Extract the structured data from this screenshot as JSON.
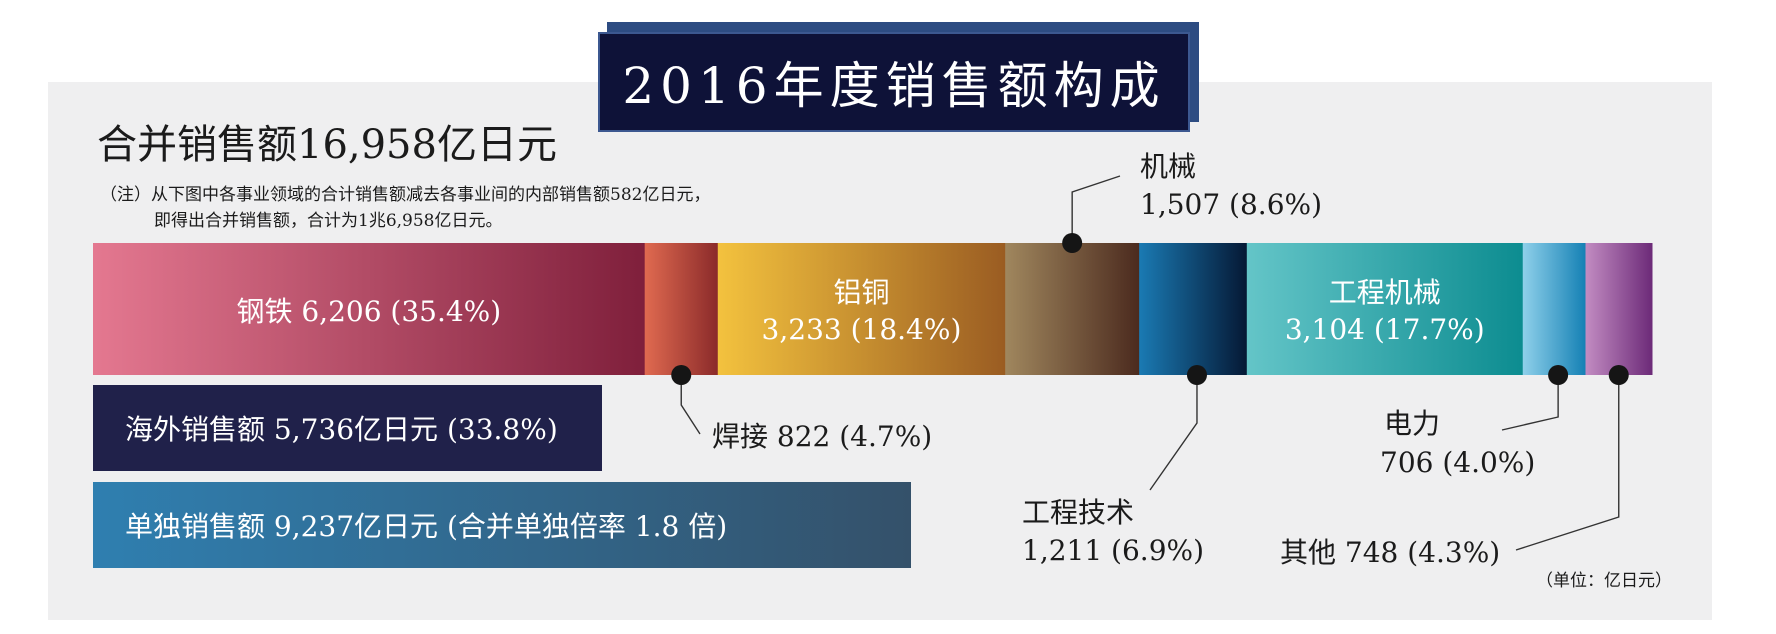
{
  "header": {
    "title": "2016年度销售额构成",
    "total": "合并销售额16,958亿日元",
    "note_line1": "（注）从下图中各事业领域的合计销售额减去各事业间的内部销售额582亿日元，",
    "note_line2": "即得出合并销售额，合计为1兆6,958亿日元。",
    "unit": "（单位：亿日元）"
  },
  "boxes": {
    "overseas": "海外销售额 5,736亿日元 (33.8%)",
    "standalone": "单独销售额 9,237亿日元 (合并单独倍率 1.8 倍)"
  },
  "chart_data": {
    "type": "bar",
    "orientation": "stacked-horizontal",
    "categories": [
      "钢铁",
      "焊接",
      "铝铜",
      "机械",
      "工程技术",
      "工程机械",
      "电力",
      "其他"
    ],
    "values": [
      6206,
      822,
      3233,
      1507,
      1211,
      3104,
      706,
      748
    ],
    "percents": [
      "35.4%",
      "4.7%",
      "18.4%",
      "8.6%",
      "6.9%",
      "17.7%",
      "4.0%",
      "4.3%"
    ],
    "labels": [
      {
        "name": "钢铁",
        "value": "6,206",
        "pct": "(35.4%)"
      },
      {
        "name": "焊接",
        "value": "822",
        "pct": "(4.7%)"
      },
      {
        "name": "铝铜",
        "value": "3,233",
        "pct": "(18.4%)"
      },
      {
        "name": "机械",
        "value": "1,507",
        "pct": "(8.6%)"
      },
      {
        "name": "工程技术",
        "value": "1,211",
        "pct": "(6.9%)"
      },
      {
        "name": "工程机械",
        "value": "3,104",
        "pct": "(17.7%)"
      },
      {
        "name": "电力",
        "value": "706",
        "pct": "(4.0%)"
      },
      {
        "name": "其他",
        "value": "748",
        "pct": "(4.3%)"
      }
    ],
    "colors": [
      [
        "#e47890",
        "#7f1f3b"
      ],
      [
        "#e06a50",
        "#8a2a2a"
      ],
      [
        "#f3c23e",
        "#9a5c22"
      ],
      [
        "#a0875e",
        "#4b2a1e"
      ],
      [
        "#1a7ab3",
        "#051834"
      ],
      [
        "#64c5c8",
        "#0c8c90"
      ],
      [
        "#8fd0ea",
        "#1480b4"
      ],
      [
        "#c28cc2",
        "#6c2a78"
      ]
    ]
  }
}
